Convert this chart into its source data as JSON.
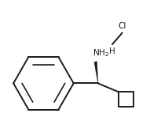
{
  "background_color": "#ffffff",
  "line_color": "#1a1a1a",
  "text_color": "#1a1a1a",
  "nh2_label": "NH$_2$",
  "hcl_h": "H",
  "hcl_cl": "Cl",
  "line_width": 1.4,
  "fig_width": 1.91,
  "fig_height": 1.67,
  "dpi": 100
}
